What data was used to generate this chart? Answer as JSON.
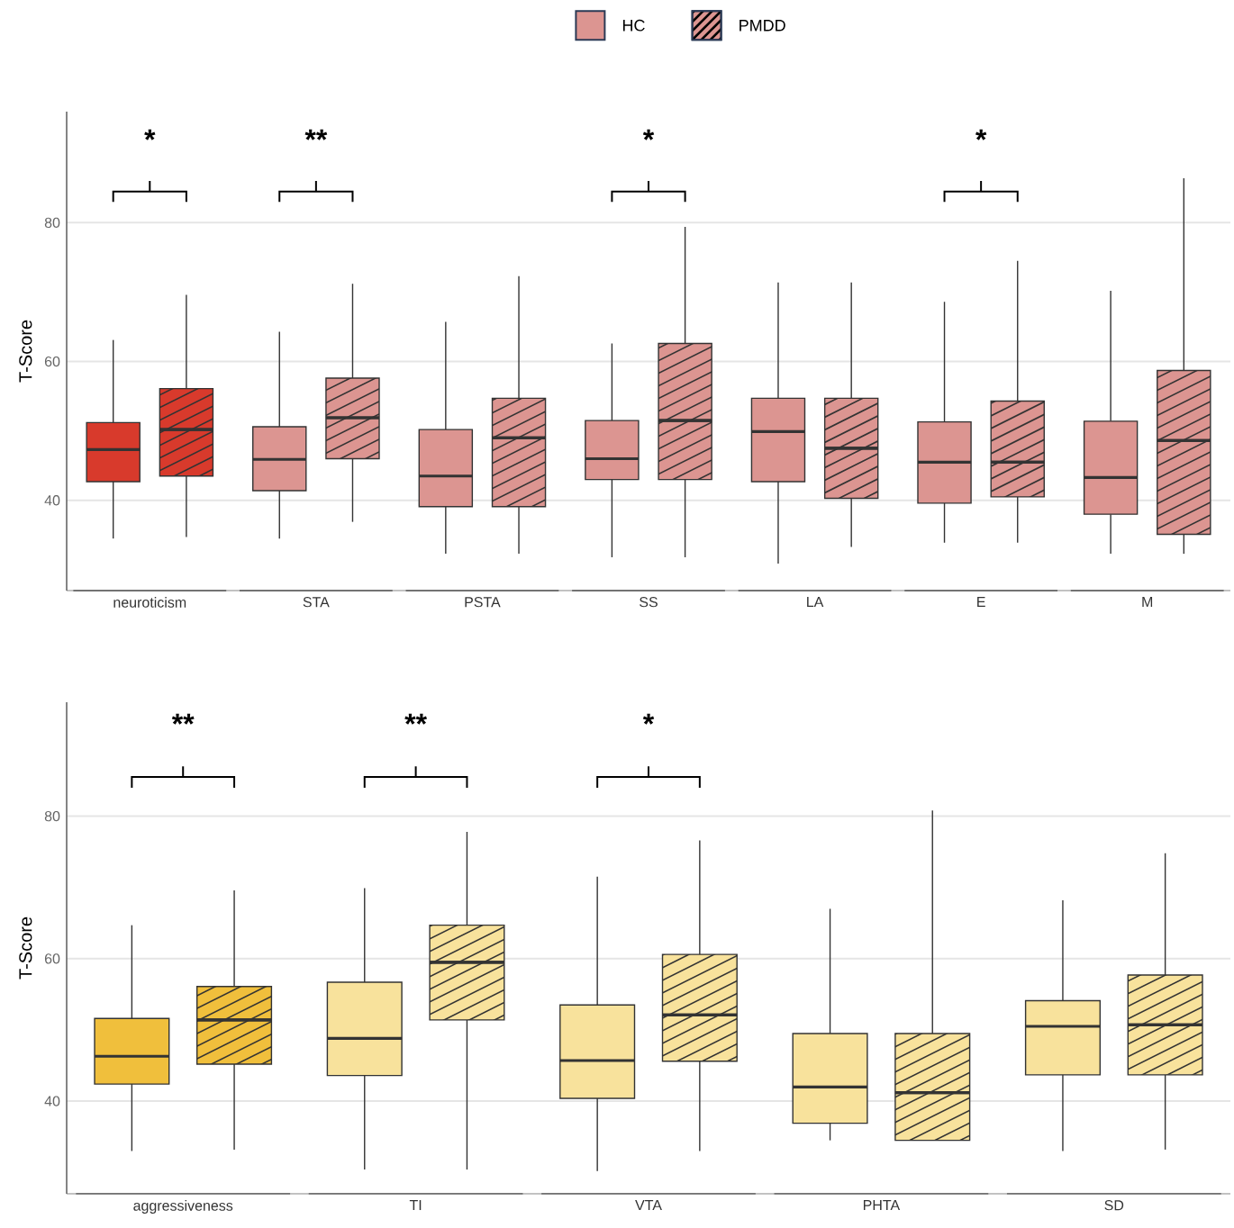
{
  "chart_data": [
    {
      "type": "box",
      "ylabel": "T-Score",
      "categories": [
        "neuroticism",
        "STA",
        "PSTA",
        "SS",
        "LA",
        "E",
        "M"
      ],
      "ylim": [
        27,
        96
      ],
      "yticks": [
        40,
        60,
        80
      ],
      "grid": "y",
      "legend": "top",
      "series": [
        {
          "name": "HC",
          "colors": [
            "#d83a2c",
            "#dc9591",
            "#dc9591",
            "#dc9591",
            "#dc9591",
            "#dc9591",
            "#dc9591"
          ],
          "boxes": [
            {
              "low": 34.5,
              "q1": 42.7,
              "median": 47.3,
              "q3": 51.2,
              "high": 63.1
            },
            {
              "low": 34.5,
              "q1": 41.4,
              "median": 45.9,
              "q3": 50.6,
              "high": 64.3
            },
            {
              "low": 32.3,
              "q1": 39.1,
              "median": 43.5,
              "q3": 50.2,
              "high": 65.7
            },
            {
              "low": 31.8,
              "q1": 43.0,
              "median": 46.0,
              "q3": 51.5,
              "high": 62.6
            },
            {
              "low": 30.9,
              "q1": 42.7,
              "median": 49.9,
              "q3": 54.7,
              "high": 71.4
            },
            {
              "low": 33.9,
              "q1": 39.6,
              "median": 45.5,
              "q3": 51.3,
              "high": 68.6
            },
            {
              "low": 32.3,
              "q1": 38.0,
              "median": 43.3,
              "q3": 51.4,
              "high": 70.2
            }
          ]
        },
        {
          "name": "PMDD",
          "colors": [
            "#d83a2c",
            "#dc9591",
            "#dc9591",
            "#dc9591",
            "#dc9591",
            "#dc9591",
            "#dc9591"
          ],
          "boxes": [
            {
              "low": 34.7,
              "q1": 43.5,
              "median": 50.2,
              "q3": 56.1,
              "high": 69.6
            },
            {
              "low": 36.9,
              "q1": 46.0,
              "median": 51.9,
              "q3": 57.6,
              "high": 71.2
            },
            {
              "low": 32.3,
              "q1": 39.1,
              "median": 49.0,
              "q3": 54.7,
              "high": 72.3
            },
            {
              "low": 31.8,
              "q1": 43.0,
              "median": 51.5,
              "q3": 62.6,
              "high": 79.4
            },
            {
              "low": 33.3,
              "q1": 40.3,
              "median": 47.5,
              "q3": 54.7,
              "high": 71.4
            },
            {
              "low": 33.9,
              "q1": 40.5,
              "median": 45.5,
              "q3": 54.3,
              "high": 74.5
            },
            {
              "low": 32.3,
              "q1": 35.1,
              "median": 48.6,
              "q3": 58.7,
              "high": 86.4
            }
          ]
        }
      ],
      "annotations": [
        "*",
        "**",
        "*",
        "*"
      ]
    },
    {
      "type": "box",
      "ylabel": "T-Score",
      "categories": [
        "aggressiveness",
        "TI",
        "VTA",
        "PHTA",
        "SD"
      ],
      "ylim": [
        27,
        96
      ],
      "yticks": [
        40,
        60,
        80
      ],
      "grid": "y",
      "series": [
        {
          "colors": [
            "#f0bf3c",
            "#f8e29c",
            "#f8e29c",
            "#f8e29c",
            "#f8e29c"
          ],
          "boxes": [
            {
              "low": 33.0,
              "q1": 42.4,
              "median": 46.3,
              "q3": 51.6,
              "high": 64.7
            },
            {
              "low": 30.4,
              "q1": 43.6,
              "median": 48.8,
              "q3": 56.7,
              "high": 69.9
            },
            {
              "low": 30.2,
              "q1": 40.4,
              "median": 45.7,
              "q3": 53.5,
              "high": 71.5
            },
            {
              "low": 34.5,
              "q1": 36.9,
              "median": 42.0,
              "q3": 49.5,
              "high": 67.0
            },
            {
              "low": 33.0,
              "q1": 43.7,
              "median": 50.5,
              "q3": 54.1,
              "high": 68.2
            }
          ]
        },
        {
          "colors": [
            "#f0bf3c",
            "#f8e29c",
            "#f8e29c",
            "#f8e29c",
            "#f8e29c"
          ],
          "boxes": [
            {
              "low": 33.2,
              "q1": 45.2,
              "median": 51.4,
              "q3": 56.1,
              "high": 69.6
            },
            {
              "low": 30.4,
              "q1": 51.4,
              "median": 59.5,
              "q3": 64.7,
              "high": 77.8
            },
            {
              "low": 33.0,
              "q1": 45.6,
              "median": 52.1,
              "q3": 60.6,
              "high": 76.6
            },
            {
              "low": 34.5,
              "q1": 34.5,
              "median": 41.2,
              "q3": 49.5,
              "high": 80.8
            },
            {
              "low": 33.2,
              "q1": 43.7,
              "median": 50.7,
              "q3": 57.7,
              "high": 74.8
            }
          ]
        }
      ],
      "annotations": [
        "**",
        "**",
        "*"
      ]
    }
  ]
}
